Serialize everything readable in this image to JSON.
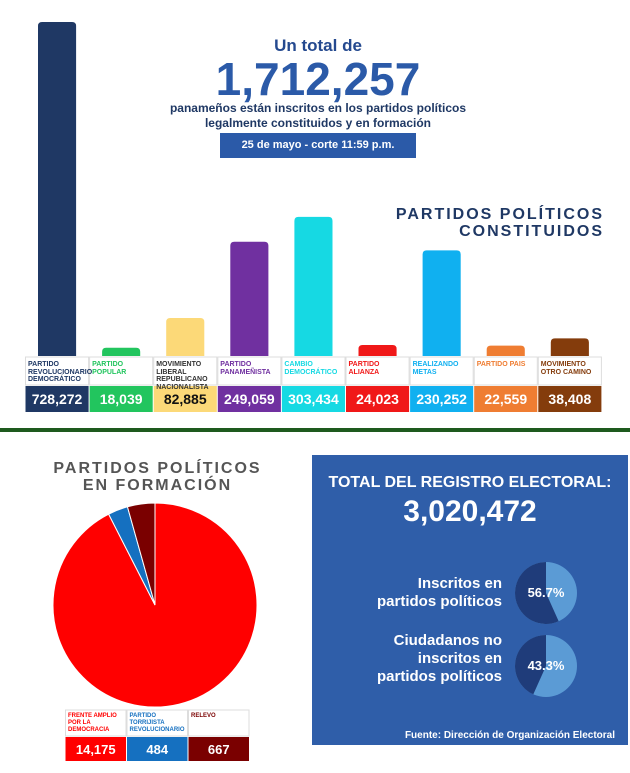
{
  "header": {
    "intro": "Un total de",
    "total": "1,712,257",
    "lines": [
      "panameños están inscritos en los partidos políticos",
      "legalmente constituidos y en formación"
    ],
    "date": "25 de mayo - corte 11:59 p.m."
  },
  "chart_data": [
    {
      "type": "bar",
      "title": [
        "PARTIDOS POLÍTICOS",
        "CONSTITUIDOS"
      ],
      "categories": [
        "PARTIDO REVOLUCIONARIO DEMOCRÁTICO",
        "PARTIDO POPULAR",
        "MOVIMIENTO LIBERAL REPUBLICANO NACIONALISTA",
        "PARTIDO PANAMEÑISTA",
        "CAMBIO DEMOCRÁTICO",
        "PARTIDO ALIANZA",
        "REALIZANDO METAS",
        "PARTIDO PAIS",
        "MOVIMIENTO OTRO CAMINO"
      ],
      "values": [
        728272,
        18039,
        82885,
        249059,
        303434,
        24023,
        230252,
        22559,
        38408
      ],
      "value_labels": [
        "728,272",
        "18,039",
        "82,885",
        "249,059",
        "303,434",
        "24,023",
        "230,252",
        "22,559",
        "38,408"
      ],
      "colors": [
        "#1f3864",
        "#22c55e",
        "#fcd978",
        "#7030a0",
        "#16d9e3",
        "#f01818",
        "#10b0f0",
        "#ef7d32",
        "#843c0c"
      ]
    },
    {
      "type": "pie",
      "title": [
        "PARTIDOS POLÍTICOS",
        "EN FORMACIÓN"
      ],
      "categories": [
        "FRENTE AMPLIO POR LA DEMOCRACIA",
        "PARTIDO TORRIJISTA REVOLUCIONARIO",
        "RELEVO"
      ],
      "values": [
        14175,
        484,
        667
      ],
      "value_labels": [
        "14,175",
        "484",
        "667"
      ],
      "colors": [
        "#ff0000",
        "#1570c0",
        "#7a0000"
      ]
    },
    {
      "type": "percent",
      "title": "TOTAL DEL REGISTRO ELECTORAL:",
      "subtitle": "3,020,472",
      "categories": [
        "Inscritos en partidos políticos",
        "Ciudadanos no inscritos en partidos políticos"
      ],
      "values": [
        56.7,
        43.3
      ],
      "value_labels": [
        "56.7%",
        "43.3%"
      ],
      "colors": [
        "#1f3c7a",
        "#5b9bd5"
      ]
    }
  ],
  "source": "Fuente: Dirección de Organización Electoral"
}
